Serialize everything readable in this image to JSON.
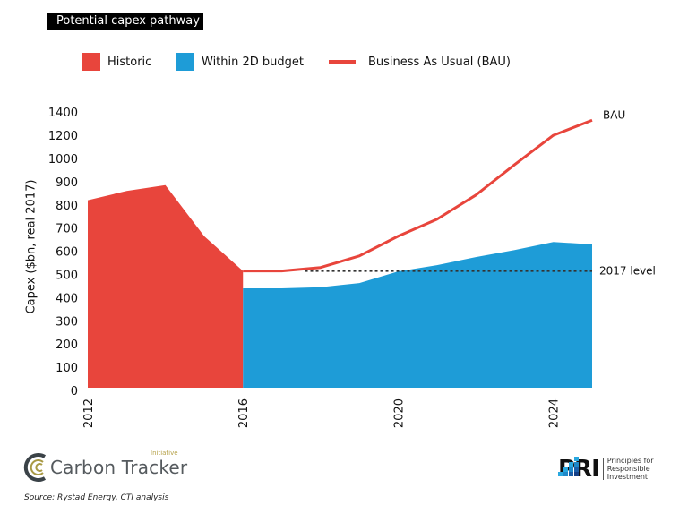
{
  "header": {
    "title": "Potential capex pathway"
  },
  "legend": [
    {
      "label": "Historic",
      "type": "area",
      "color": "#E8453C"
    },
    {
      "label": "Within 2D budget",
      "type": "area",
      "color": "#1E9CD7"
    },
    {
      "label": "Business As Usual (BAU)",
      "type": "line",
      "color": "#E8453C"
    }
  ],
  "chart_data": {
    "type": "area",
    "title": "Potential capex pathway",
    "xlabel": "",
    "ylabel": "Capex ($bn, real 2017)",
    "x_ticks": [
      "2012",
      "2016",
      "2020",
      "2024"
    ],
    "y_ticks": [
      "1400",
      "1200",
      "1000",
      "900",
      "800",
      "700",
      "600",
      "500",
      "400",
      "300",
      "200",
      "100",
      "0"
    ],
    "y_tick_values": [
      1400,
      1200,
      1000,
      900,
      800,
      700,
      600,
      500,
      400,
      300,
      200,
      100,
      0
    ],
    "xlim": [
      2012,
      2025
    ],
    "ylim": [
      0,
      1400
    ],
    "grid": false,
    "legend_position": "top",
    "series": [
      {
        "name": "Historic",
        "type": "area",
        "color": "#E8453C",
        "x": [
          2012,
          2013,
          2014,
          2015,
          2016
        ],
        "values": [
          820,
          860,
          885,
          665,
          515
        ]
      },
      {
        "name": "Within 2D budget",
        "type": "area",
        "color": "#1E9CD7",
        "x": [
          2016,
          2017,
          2018,
          2019,
          2020,
          2021,
          2022,
          2023,
          2024,
          2025
        ],
        "values": [
          440,
          440,
          445,
          463,
          513,
          540,
          575,
          605,
          640,
          630
        ]
      },
      {
        "name": "Business As Usual (BAU)",
        "type": "line",
        "color": "#E8453C",
        "x": [
          2016,
          2017,
          2018,
          2019,
          2020,
          2021,
          2022,
          2023,
          2024,
          2025
        ],
        "values": [
          515,
          515,
          530,
          580,
          665,
          738,
          842,
          973,
          1200,
          1330
        ]
      }
    ],
    "reference_lines": [
      {
        "label": "2017 level",
        "value": 515,
        "from": 2017.6,
        "to": 2025,
        "style": "dotted"
      }
    ],
    "annotations": [
      {
        "text": "BAU",
        "x": 2025,
        "y": 1330
      },
      {
        "text": "2017 level",
        "x": 2025,
        "y": 515
      }
    ]
  },
  "footer": {
    "logo_left": {
      "name": "Carbon Tracker",
      "sub": "Initiative"
    },
    "source": "Source: Rystad Energy, CTI analysis",
    "logo_right": {
      "name": "PRI",
      "sub": [
        "Principles for",
        "Responsible",
        "Investment"
      ]
    }
  }
}
